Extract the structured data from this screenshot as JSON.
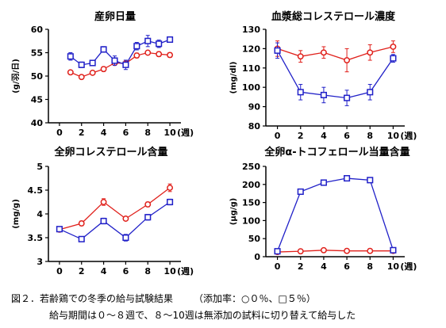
{
  "colors": {
    "control": "#e0201b",
    "treated": "#2020c8",
    "axis": "#000000"
  },
  "legend_symbols": {
    "control": "circle",
    "treated": "square"
  },
  "caption": {
    "label": "図２．若齢鶏での冬季の給与試験結果",
    "note": "（添加率：○０％、□５％）",
    "line2": "給与期間は０～８週で、８～10週は無添加の試料に切り替えて給与した"
  },
  "chart_data": [
    {
      "type": "line",
      "title": "産卵日量",
      "ylabel": "(g/羽/日)",
      "xlabel": "(週)",
      "x_ticks": [
        0,
        2,
        4,
        6,
        8,
        10
      ],
      "y_ticks": [
        "40",
        "45",
        "50",
        "55",
        "60"
      ],
      "xlim": [
        -1,
        11
      ],
      "ylim": [
        40,
        60
      ],
      "series": [
        {
          "key": "control",
          "marker": "circle",
          "x": [
            1,
            2,
            3,
            4,
            5,
            6,
            7,
            8,
            9,
            10
          ],
          "y": [
            50.8,
            49.8,
            50.7,
            51.5,
            52.8,
            52.7,
            54.4,
            55.0,
            54.7,
            54.5
          ],
          "err": [
            0.4,
            0.4,
            0.4,
            0.5,
            0.5,
            0.5,
            0.5,
            0.4,
            0.5,
            0.5
          ]
        },
        {
          "key": "treated",
          "marker": "square",
          "x": [
            1,
            2,
            3,
            4,
            5,
            6,
            7,
            8,
            9,
            10
          ],
          "y": [
            54.2,
            52.4,
            52.8,
            55.7,
            53.3,
            52.4,
            56.4,
            57.5,
            56.9,
            57.8
          ],
          "err": [
            0.8,
            0.6,
            0.5,
            0.6,
            1.0,
            1.0,
            0.8,
            1.2,
            0.8,
            0.6
          ]
        }
      ]
    },
    {
      "type": "line",
      "title": "血漿総コレステロール濃度",
      "ylabel": "(mg/dl)",
      "xlabel": "(週)",
      "x_ticks": [
        0,
        2,
        4,
        6,
        8,
        10
      ],
      "y_ticks": [
        "80",
        "90",
        "100",
        "110",
        "120",
        "130"
      ],
      "xlim": [
        -1,
        11
      ],
      "ylim": [
        80,
        130
      ],
      "series": [
        {
          "key": "control",
          "marker": "circle",
          "x": [
            0,
            2,
            4,
            6,
            8,
            10
          ],
          "y": [
            120,
            116,
            118,
            114,
            118,
            121
          ],
          "err": [
            4,
            3,
            3,
            6,
            4,
            3
          ]
        },
        {
          "key": "treated",
          "marker": "square",
          "x": [
            0,
            2,
            4,
            6,
            8,
            10
          ],
          "y": [
            119,
            97.5,
            96,
            94.5,
            97.5,
            115
          ],
          "err": [
            4,
            4,
            4,
            4,
            4,
            2
          ]
        }
      ]
    },
    {
      "type": "line",
      "title": "全卵コレステロール含量",
      "ylabel": "(mg/g)",
      "xlabel": "(週)",
      "x_ticks": [
        0,
        2,
        4,
        6,
        8,
        10
      ],
      "y_ticks": [
        "3",
        "3.5",
        "4",
        "4.5",
        "5"
      ],
      "xlim": [
        -1,
        11
      ],
      "ylim": [
        3,
        5
      ],
      "series": [
        {
          "key": "control",
          "marker": "circle",
          "x": [
            0,
            2,
            4,
            6,
            8,
            10
          ],
          "y": [
            3.67,
            3.8,
            4.25,
            3.9,
            4.2,
            4.55
          ],
          "err": [
            0.04,
            0.05,
            0.07,
            0.04,
            0.05,
            0.08
          ]
        },
        {
          "key": "treated",
          "marker": "square",
          "x": [
            0,
            2,
            4,
            6,
            8,
            10
          ],
          "y": [
            3.68,
            3.47,
            3.85,
            3.5,
            3.93,
            4.25
          ],
          "err": [
            0.04,
            0.04,
            0.06,
            0.07,
            0.06,
            0.06
          ]
        }
      ]
    },
    {
      "type": "line",
      "title": "全卵α-トコフェロール当量含量",
      "ylabel": "(μg/g)",
      "xlabel": "(週)",
      "x_ticks": [
        0,
        2,
        4,
        6,
        8,
        10
      ],
      "y_ticks": [
        "0",
        "50",
        "100",
        "150",
        "200",
        "250"
      ],
      "xlim": [
        -1,
        11
      ],
      "ylim": [
        0,
        250
      ],
      "series": [
        {
          "key": "control",
          "marker": "circle",
          "x": [
            0,
            2,
            4,
            6,
            8,
            10
          ],
          "y": [
            13,
            15,
            18,
            16,
            16,
            16
          ],
          "err": [
            1,
            1,
            1,
            1,
            1,
            1
          ]
        },
        {
          "key": "treated",
          "marker": "square",
          "x": [
            0,
            2,
            4,
            6,
            8,
            10
          ],
          "y": [
            15,
            180,
            205,
            217,
            212,
            18
          ],
          "err": [
            2,
            3,
            3,
            3,
            3,
            2
          ]
        }
      ]
    }
  ]
}
